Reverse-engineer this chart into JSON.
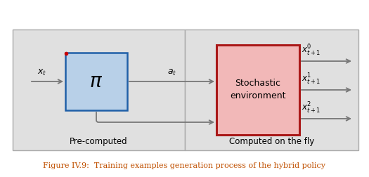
{
  "fig_width": 5.25,
  "fig_height": 2.52,
  "dpi": 100,
  "bg_color": "#ffffff",
  "panel_fill": "#e0e0e0",
  "panel_edge": "#aaaaaa",
  "pi_box_fill": "#b8d0e8",
  "pi_box_edge": "#2060a8",
  "stoch_box_fill": "#f2b8b8",
  "stoch_box_edge": "#aa1818",
  "arrow_color": "#777777",
  "red_dot_color": "#cc0000",
  "caption_color": "#c05000",
  "caption_text": "Figure IV.9:  Training examples generation process of the hybrid policy",
  "precomputed_label": "Pre-computed",
  "fly_label": "Computed on the fly",
  "lw_panel": 1.0,
  "lw_pi": 1.8,
  "lw_stoch": 2.2,
  "lw_arrow": 1.3
}
